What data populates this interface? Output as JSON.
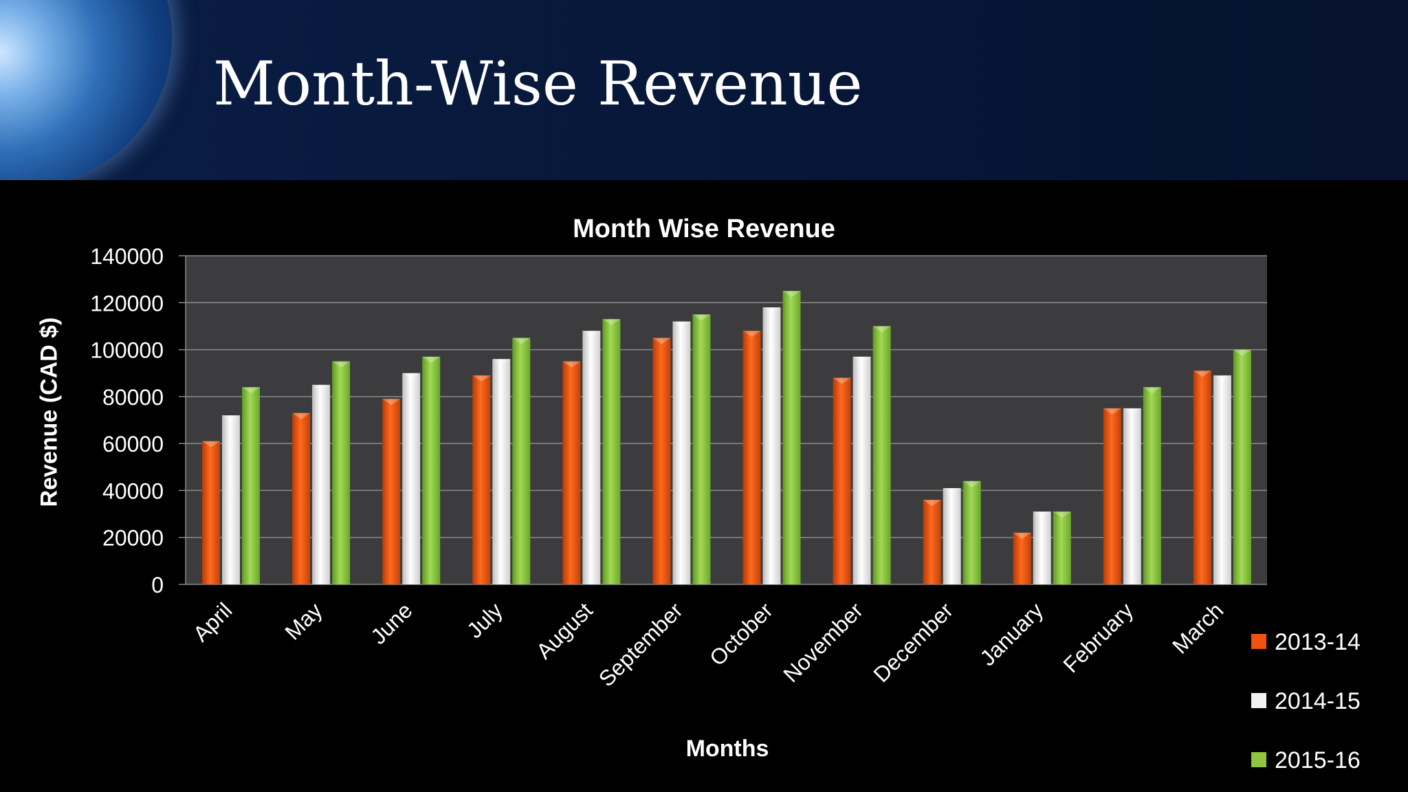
{
  "slide": {
    "title": "Month-Wise Revenue"
  },
  "chart_data": {
    "type": "bar",
    "title": "Month Wise Revenue",
    "xlabel": "Months",
    "ylabel": "Revenue (CAD $)",
    "ylim": [
      0,
      140000
    ],
    "yticks": [
      0,
      20000,
      40000,
      60000,
      80000,
      100000,
      120000,
      140000
    ],
    "grid": true,
    "legend_position": "bottom-right",
    "categories": [
      "April",
      "May",
      "June",
      "July",
      "August",
      "September",
      "October",
      "November",
      "December",
      "January",
      "February",
      "March"
    ],
    "series": [
      {
        "name": "2013-14",
        "color": "#f0520f",
        "values": [
          61000,
          73000,
          79000,
          89000,
          95000,
          105000,
          108000,
          88000,
          36000,
          22000,
          75000,
          91000
        ]
      },
      {
        "name": "2014-15",
        "color": "#f2f2f2",
        "values": [
          72000,
          85000,
          90000,
          96000,
          108000,
          112000,
          118000,
          97000,
          41000,
          31000,
          75000,
          89000
        ]
      },
      {
        "name": "2015-16",
        "color": "#8fc63f",
        "values": [
          84000,
          95000,
          97000,
          105000,
          113000,
          115000,
          125000,
          110000,
          44000,
          31000,
          84000,
          100000
        ]
      }
    ]
  }
}
